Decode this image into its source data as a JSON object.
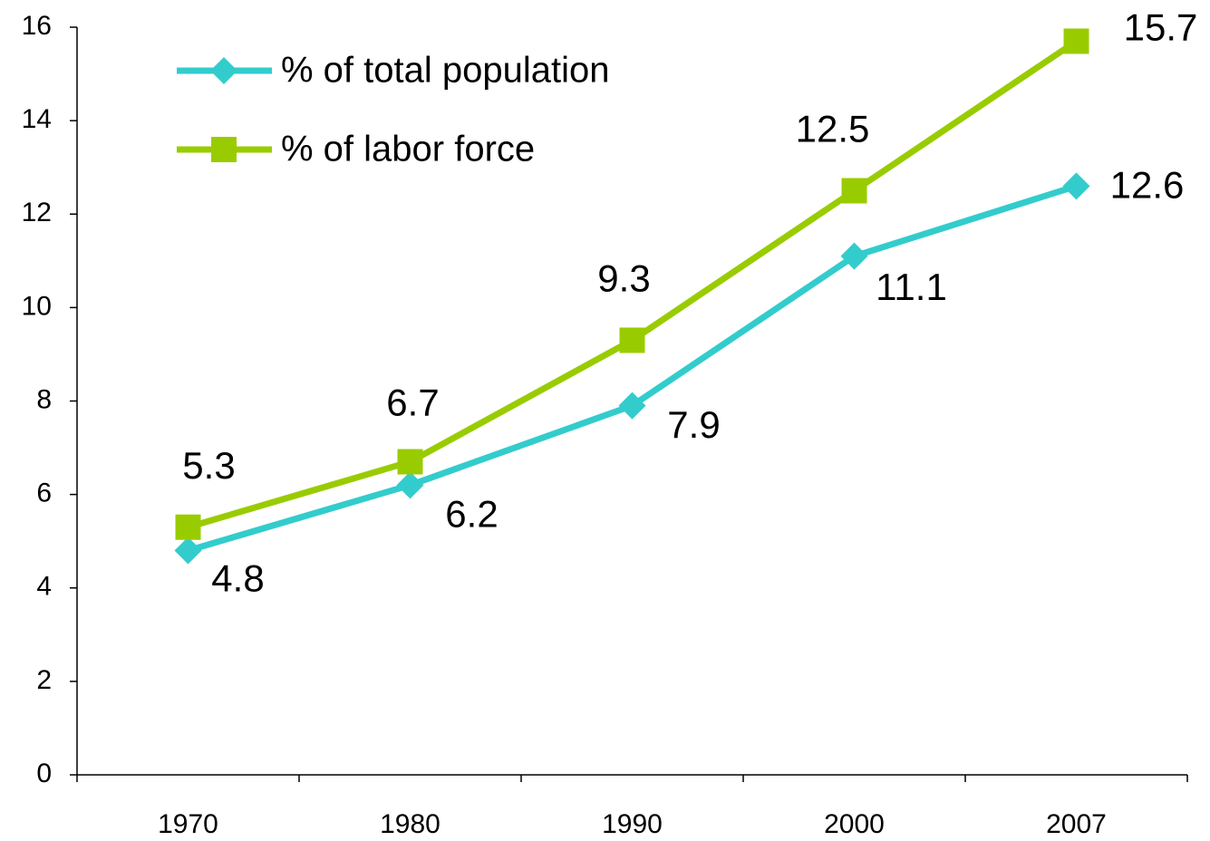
{
  "chart_data": {
    "type": "line",
    "categories": [
      "1970",
      "1980",
      "1990",
      "2000",
      "2007"
    ],
    "series": [
      {
        "name": "% of total population",
        "color": "#33cccc",
        "marker": "diamond",
        "values": [
          4.8,
          6.2,
          7.9,
          11.1,
          12.6
        ]
      },
      {
        "name": "% of labor force",
        "color": "#99cc00",
        "marker": "square",
        "values": [
          5.3,
          6.7,
          9.3,
          12.5,
          15.7
        ]
      }
    ],
    "ylim": [
      0,
      16
    ],
    "yticks": [
      0,
      2,
      4,
      6,
      8,
      10,
      12,
      14,
      16
    ],
    "legend": "upper left",
    "grid": false
  }
}
